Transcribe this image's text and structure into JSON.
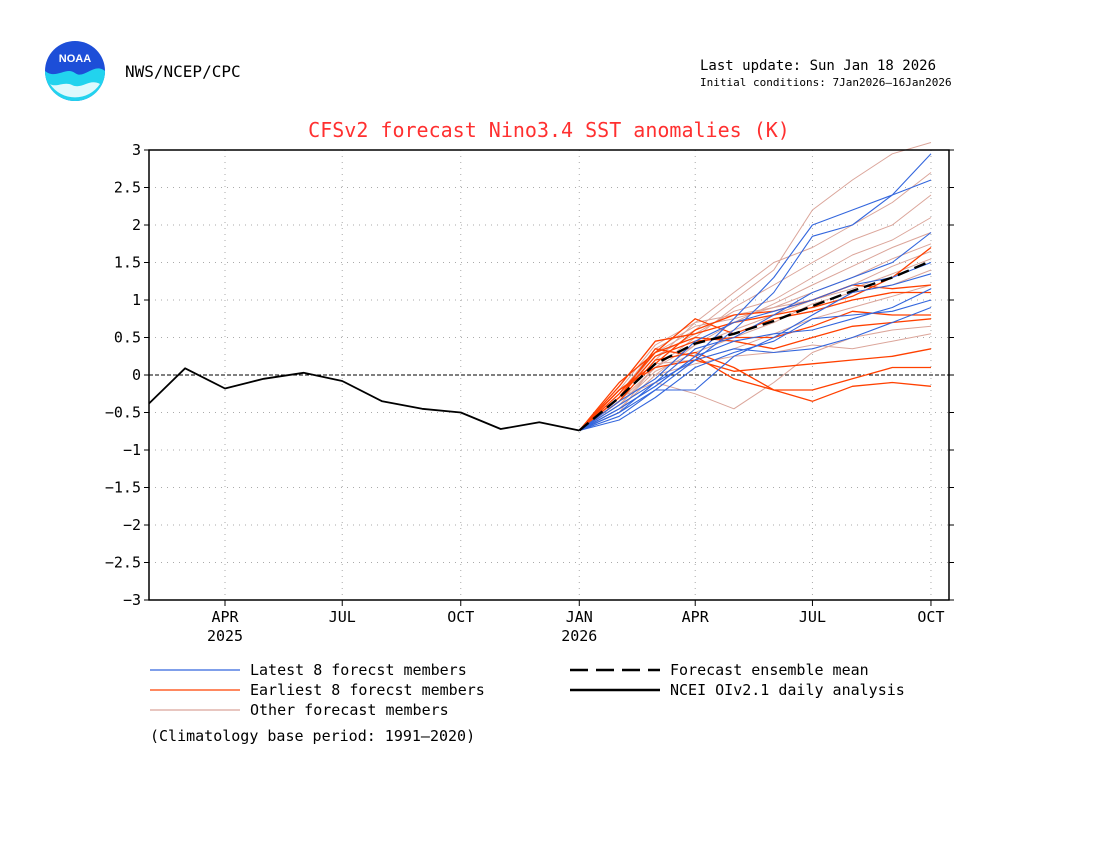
{
  "header": {
    "org": "NWS/NCEP/CPC",
    "last_update": "Last update: Sun Jan 18 2026",
    "initial_conditions": "Initial conditions: 7Jan2026–16Jan2026",
    "logo_text": "NOAA"
  },
  "footer": {
    "climatology_note": "(Climatology base period: 1991–2020)"
  },
  "colors": {
    "title": "#ff3030",
    "latest": "#3366dd",
    "earliest": "#ff4000",
    "other": "#dba59a",
    "mean": "#000000",
    "analysis": "#000000",
    "logo_blue": "#1d4ed8",
    "logo_cyan": "#22d3ee"
  },
  "chart_data": {
    "type": "line",
    "title": "CFSv2 forecast Nino3.4 SST anomalies (K)",
    "ylim": [
      -3,
      3
    ],
    "yticks": [
      -3,
      -2.5,
      -2,
      -1.5,
      -1,
      -0.5,
      0,
      0.5,
      1,
      1.5,
      2,
      2.5,
      3
    ],
    "ytick_labels": [
      "−3",
      "−2.5",
      "−2",
      "−1.5",
      "−1",
      "−0.5",
      "0",
      "0.5",
      "1",
      "1.5",
      "2",
      "2.5",
      "3"
    ],
    "xlim": [
      "2025-02-01",
      "2026-10-15"
    ],
    "xticks": [
      {
        "date": "2025-04-01",
        "label": "APR",
        "year": "2025"
      },
      {
        "date": "2025-07-01",
        "label": "JUL",
        "year": ""
      },
      {
        "date": "2025-10-01",
        "label": "OCT",
        "year": ""
      },
      {
        "date": "2026-01-01",
        "label": "JAN",
        "year": "2026"
      },
      {
        "date": "2026-04-01",
        "label": "APR",
        "year": ""
      },
      {
        "date": "2026-07-01",
        "label": "JUL",
        "year": ""
      },
      {
        "date": "2026-10-01",
        "label": "OCT",
        "year": ""
      }
    ],
    "grid": true,
    "zero_line": true,
    "forecast_x": [
      "2026-01-01",
      "2026-02-01",
      "2026-03-01",
      "2026-04-01",
      "2026-05-01",
      "2026-06-01",
      "2026-07-01",
      "2026-08-01",
      "2026-09-01",
      "2026-10-01"
    ],
    "series": [
      {
        "name": "NCEI OIv2.1 daily analysis",
        "group": "analysis",
        "x": [
          "2025-02-01",
          "2025-03-01",
          "2025-04-01",
          "2025-05-01",
          "2025-06-01",
          "2025-07-01",
          "2025-08-01",
          "2025-09-01",
          "2025-10-01",
          "2025-11-01",
          "2025-12-01",
          "2026-01-01"
        ],
        "values": [
          -0.38,
          0.09,
          -0.18,
          -0.05,
          0.03,
          -0.08,
          -0.35,
          -0.45,
          -0.5,
          -0.72,
          -0.63,
          -0.74
        ]
      },
      {
        "name": "Latest 8 forecst members",
        "group": "latest",
        "values": [
          -0.74,
          -0.45,
          -0.15,
          0.25,
          0.75,
          1.3,
          2.0,
          2.2,
          2.4,
          2.6
        ]
      },
      {
        "name": "Latest 8 forecst members",
        "group": "latest",
        "values": [
          -0.74,
          -0.5,
          -0.2,
          0.2,
          0.6,
          1.1,
          1.85,
          2.0,
          2.4,
          2.95
        ]
      },
      {
        "name": "Latest 8 forecst members",
        "group": "latest",
        "values": [
          -0.74,
          -0.4,
          -0.1,
          0.35,
          0.5,
          0.8,
          1.1,
          1.3,
          1.5,
          1.9
        ]
      },
      {
        "name": "Latest 8 forecst members",
        "group": "latest",
        "values": [
          -0.74,
          -0.35,
          -0.05,
          0.45,
          0.7,
          0.85,
          1.0,
          1.2,
          1.3,
          1.5
        ]
      },
      {
        "name": "Latest 8 forecst members",
        "group": "latest",
        "values": [
          -0.74,
          -0.55,
          -0.2,
          -0.2,
          0.25,
          0.5,
          0.8,
          1.1,
          1.2,
          1.35
        ]
      },
      {
        "name": "Latest 8 forecst members",
        "group": "latest",
        "values": [
          -0.74,
          -0.6,
          -0.3,
          0.1,
          0.3,
          0.45,
          0.75,
          0.8,
          0.85,
          1.0
        ]
      },
      {
        "name": "Latest 8 forecst members",
        "group": "latest",
        "values": [
          -0.74,
          -0.45,
          -0.15,
          0.25,
          0.45,
          0.55,
          0.6,
          0.75,
          0.9,
          1.15
        ]
      },
      {
        "name": "Latest 8 forecst members",
        "group": "latest",
        "values": [
          -0.74,
          -0.5,
          -0.1,
          0.2,
          0.35,
          0.3,
          0.35,
          0.5,
          0.7,
          0.9
        ]
      },
      {
        "name": "Earliest 8 forecst members",
        "group": "earliest",
        "values": [
          -0.74,
          -0.2,
          0.15,
          0.6,
          0.8,
          0.85,
          1.0,
          1.2,
          1.15,
          1.2
        ]
      },
      {
        "name": "Earliest 8 forecst members",
        "group": "earliest",
        "values": [
          -0.74,
          -0.1,
          0.3,
          0.75,
          0.55,
          0.75,
          0.85,
          1.0,
          1.1,
          1.1
        ]
      },
      {
        "name": "Earliest 8 forecst members",
        "group": "earliest",
        "values": [
          -0.74,
          -0.15,
          0.45,
          0.55,
          0.7,
          0.8,
          0.9,
          1.05,
          1.3,
          1.7
        ]
      },
      {
        "name": "Earliest 8 forecst members",
        "group": "earliest",
        "values": [
          -0.74,
          -0.3,
          0.25,
          0.45,
          0.5,
          0.5,
          0.65,
          0.85,
          0.8,
          0.8
        ]
      },
      {
        "name": "Earliest 8 forecst members",
        "group": "earliest",
        "values": [
          -0.74,
          -0.25,
          0.3,
          0.5,
          0.45,
          0.35,
          0.5,
          0.65,
          0.7,
          0.75
        ]
      },
      {
        "name": "Earliest 8 forecst members",
        "group": "earliest",
        "values": [
          -0.74,
          -0.2,
          0.1,
          0.2,
          0.05,
          0.1,
          0.15,
          0.2,
          0.25,
          0.35
        ]
      },
      {
        "name": "Earliest 8 forecst members",
        "group": "earliest",
        "values": [
          -0.74,
          -0.35,
          0.2,
          0.3,
          0.1,
          -0.2,
          -0.2,
          -0.05,
          0.1,
          0.1
        ]
      },
      {
        "name": "Earliest 8 forecst members",
        "group": "earliest",
        "values": [
          -0.74,
          -0.3,
          0.35,
          0.25,
          -0.05,
          -0.2,
          -0.35,
          -0.15,
          -0.1,
          -0.15
        ]
      },
      {
        "name": "Other forecast members",
        "group": "other",
        "values": [
          -0.74,
          -0.3,
          0.3,
          0.6,
          1.0,
          1.4,
          2.2,
          2.6,
          2.95,
          3.1
        ]
      },
      {
        "name": "Other forecast members",
        "group": "other",
        "values": [
          -0.74,
          -0.35,
          0.2,
          0.7,
          1.1,
          1.5,
          1.7,
          2.0,
          2.3,
          2.7
        ]
      },
      {
        "name": "Other forecast members",
        "group": "other",
        "values": [
          -0.74,
          -0.4,
          0.1,
          0.5,
          0.9,
          1.2,
          1.5,
          1.8,
          2.0,
          2.4
        ]
      },
      {
        "name": "Other forecast members",
        "group": "other",
        "values": [
          -0.74,
          -0.3,
          0.25,
          0.55,
          0.85,
          1.0,
          1.3,
          1.6,
          1.8,
          2.1
        ]
      },
      {
        "name": "Other forecast members",
        "group": "other",
        "values": [
          -0.74,
          -0.45,
          0.0,
          0.4,
          0.7,
          0.95,
          1.2,
          1.45,
          1.7,
          1.9
        ]
      },
      {
        "name": "Other forecast members",
        "group": "other",
        "values": [
          -0.74,
          -0.25,
          0.35,
          0.65,
          0.75,
          0.9,
          1.1,
          1.3,
          1.55,
          1.75
        ]
      },
      {
        "name": "Other forecast members",
        "group": "other",
        "values": [
          -0.74,
          -0.35,
          0.1,
          0.4,
          0.6,
          0.8,
          1.0,
          1.15,
          1.35,
          1.55
        ]
      },
      {
        "name": "Other forecast members",
        "group": "other",
        "values": [
          -0.74,
          -0.4,
          0.05,
          0.3,
          0.5,
          0.7,
          0.95,
          1.1,
          1.2,
          1.4
        ]
      },
      {
        "name": "Other forecast members",
        "group": "other",
        "values": [
          -0.74,
          -0.5,
          0.15,
          0.2,
          0.35,
          0.55,
          0.75,
          0.9,
          1.05,
          1.2
        ]
      },
      {
        "name": "Other forecast members",
        "group": "other",
        "values": [
          -0.74,
          -0.3,
          -0.1,
          -0.25,
          -0.45,
          -0.1,
          0.3,
          0.5,
          0.6,
          0.65
        ]
      },
      {
        "name": "Other forecast members",
        "group": "other",
        "values": [
          -0.74,
          -0.45,
          0.0,
          0.15,
          0.25,
          0.3,
          0.4,
          0.35,
          0.45,
          0.55
        ]
      },
      {
        "name": "Other forecast members",
        "group": "other",
        "values": [
          -0.74,
          -0.2,
          0.4,
          0.7,
          0.8,
          0.9,
          1.0,
          1.2,
          1.45,
          1.65
        ]
      },
      {
        "name": "Forecast ensemble mean",
        "group": "mean",
        "values": [
          -0.74,
          -0.3,
          0.15,
          0.42,
          0.55,
          0.72,
          0.92,
          1.12,
          1.3,
          1.52
        ]
      }
    ],
    "legend": [
      {
        "label": "Latest 8 forecst members",
        "group": "latest"
      },
      {
        "label": "Earliest 8 forecst members",
        "group": "earliest"
      },
      {
        "label": "Other forecast members",
        "group": "other"
      },
      {
        "label": "Forecast ensemble mean",
        "group": "mean"
      },
      {
        "label": "NCEI OIv2.1 daily analysis",
        "group": "analysis"
      }
    ]
  }
}
